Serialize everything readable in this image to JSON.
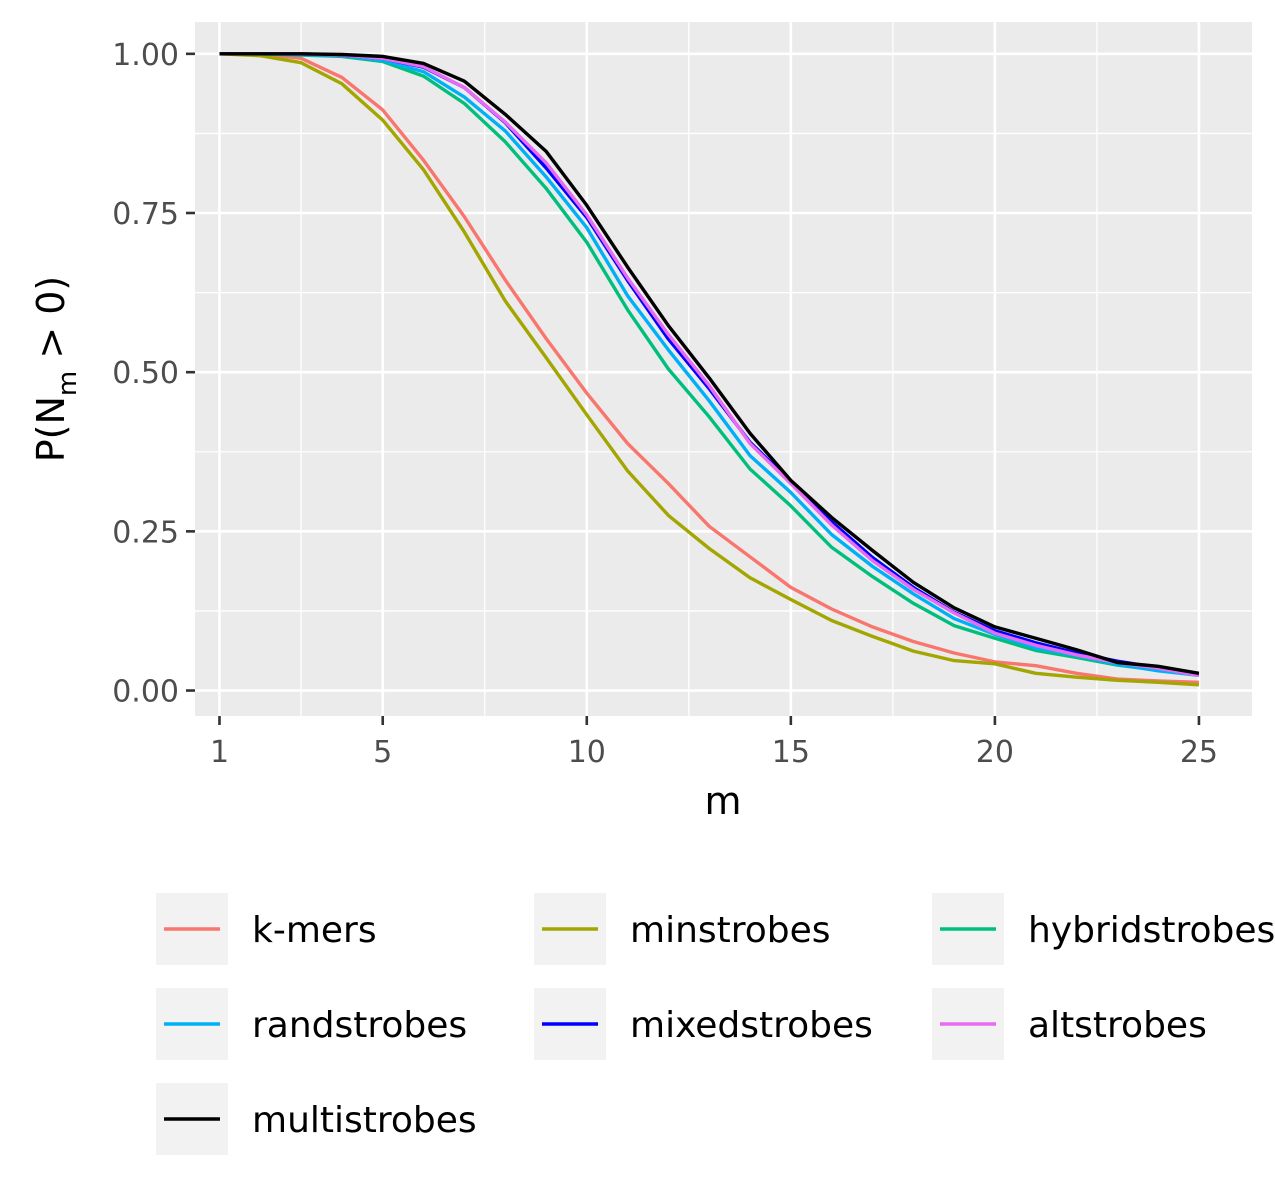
{
  "chart_data": {
    "type": "line",
    "xlabel": "m",
    "ylabel": {
      "prefix": "P(N",
      "subscript": "m",
      "suffix": " > 0)"
    },
    "xlim": [
      0.4,
      26.3
    ],
    "ylim": [
      -0.04,
      1.05
    ],
    "x_ticks": [
      1,
      5,
      10,
      15,
      20,
      25
    ],
    "x_tick_labels": [
      "1",
      "5",
      "10",
      "15",
      "20",
      "25"
    ],
    "y_ticks": [
      0,
      0.25,
      0.5,
      0.75,
      1
    ],
    "y_tick_labels": [
      "0.00",
      "0.25",
      "0.50",
      "0.75",
      "1.00"
    ],
    "grid": true,
    "legend_position": "bottom",
    "x": [
      1,
      2,
      3,
      4,
      5,
      6,
      7,
      8,
      9,
      10,
      11,
      12,
      13,
      14,
      15,
      16,
      17,
      18,
      19,
      20,
      21,
      22,
      23,
      24,
      25
    ],
    "series": [
      {
        "name": "k-mers",
        "color": "#F8766D",
        "values": [
          1.0,
          1.0,
          0.993,
          0.963,
          0.912,
          0.833,
          0.744,
          0.645,
          0.553,
          0.467,
          0.388,
          0.325,
          0.258,
          0.21,
          0.162,
          0.128,
          0.1,
          0.077,
          0.059,
          0.045,
          0.039,
          0.027,
          0.018,
          0.015,
          0.013
        ]
      },
      {
        "name": "minstrobes",
        "color": "#A3A500",
        "values": [
          1.0,
          0.997,
          0.986,
          0.953,
          0.896,
          0.818,
          0.72,
          0.612,
          0.523,
          0.433,
          0.345,
          0.275,
          0.223,
          0.177,
          0.143,
          0.11,
          0.085,
          0.062,
          0.047,
          0.042,
          0.027,
          0.021,
          0.016,
          0.013,
          0.009
        ]
      },
      {
        "name": "hybridstrobes",
        "color": "#00BF7D",
        "values": [
          1.0,
          1.0,
          0.998,
          0.996,
          0.988,
          0.965,
          0.922,
          0.862,
          0.789,
          0.704,
          0.598,
          0.505,
          0.43,
          0.348,
          0.29,
          0.225,
          0.179,
          0.137,
          0.102,
          0.082,
          0.063,
          0.052,
          0.04,
          0.032,
          0.024
        ]
      },
      {
        "name": "randstrobes",
        "color": "#00B0F6",
        "values": [
          1.0,
          1.0,
          0.999,
          0.997,
          0.99,
          0.972,
          0.932,
          0.879,
          0.807,
          0.727,
          0.62,
          0.535,
          0.455,
          0.369,
          0.311,
          0.245,
          0.195,
          0.152,
          0.113,
          0.088,
          0.067,
          0.055,
          0.041,
          0.031,
          0.024
        ]
      },
      {
        "name": "mixedstrobes",
        "color": "#0000FF",
        "values": [
          1.0,
          1.0,
          1.0,
          0.998,
          0.993,
          0.979,
          0.947,
          0.892,
          0.821,
          0.743,
          0.644,
          0.552,
          0.474,
          0.39,
          0.328,
          0.265,
          0.209,
          0.162,
          0.123,
          0.094,
          0.075,
          0.059,
          0.046,
          0.036,
          0.025
        ]
      },
      {
        "name": "altstrobes",
        "color": "#E76BF3",
        "values": [
          1.0,
          1.0,
          1.0,
          0.998,
          0.993,
          0.98,
          0.947,
          0.893,
          0.829,
          0.747,
          0.648,
          0.559,
          0.479,
          0.388,
          0.325,
          0.26,
          0.204,
          0.159,
          0.122,
          0.09,
          0.071,
          0.056,
          0.044,
          0.035,
          0.024
        ]
      },
      {
        "name": "multistrobes",
        "color": "#000000",
        "values": [
          1.0,
          1.0,
          1.0,
          0.999,
          0.996,
          0.985,
          0.957,
          0.905,
          0.847,
          0.762,
          0.665,
          0.573,
          0.491,
          0.404,
          0.33,
          0.272,
          0.22,
          0.17,
          0.13,
          0.1,
          0.082,
          0.064,
          0.044,
          0.038,
          0.027
        ]
      }
    ]
  },
  "legend": {
    "items": [
      {
        "label": "k-mers",
        "color": "#F8766D"
      },
      {
        "label": "minstrobes",
        "color": "#A3A500"
      },
      {
        "label": "hybridstrobes",
        "color": "#00BF7D"
      },
      {
        "label": "randstrobes",
        "color": "#00B0F6"
      },
      {
        "label": "mixedstrobes",
        "color": "#0000FF"
      },
      {
        "label": "altstrobes",
        "color": "#E76BF3"
      },
      {
        "label": "multistrobes",
        "color": "#000000"
      }
    ]
  },
  "colors": {
    "panel_background": "#EBEBEB",
    "grid": "#FFFFFF",
    "legend_key_background": "#F2F2F2"
  }
}
